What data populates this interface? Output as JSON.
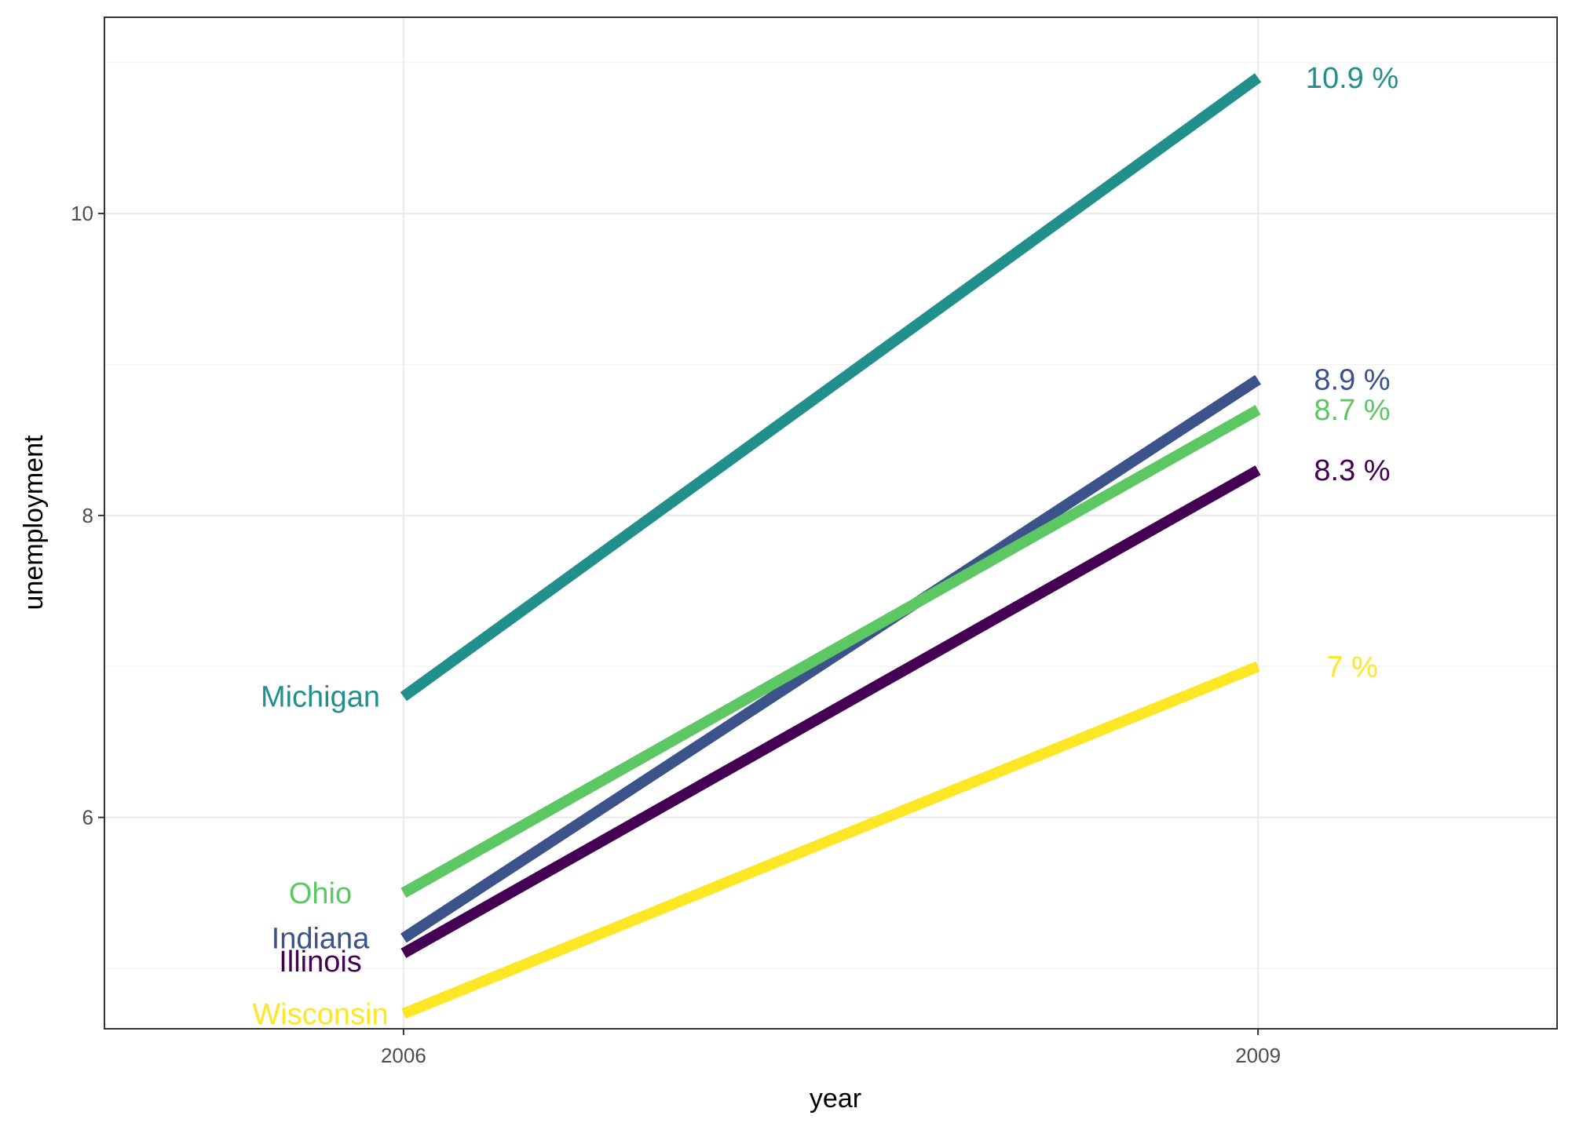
{
  "chart_data": {
    "type": "line",
    "title": "",
    "xlabel": "year",
    "ylabel": "unemployment",
    "x": [
      2006,
      2009
    ],
    "xlim": [
      2004.95,
      2010.05
    ],
    "ylim": [
      4.6,
      11.3
    ],
    "x_ticks": [
      "2006",
      "2009"
    ],
    "y_ticks": [
      "6",
      "8",
      "10"
    ],
    "y_tick_values": [
      6,
      8,
      10
    ],
    "grid": true,
    "legend": "none",
    "series": [
      {
        "name": "Michigan",
        "values": [
          6.8,
          10.9
        ],
        "color": "#21908C",
        "end_label": "10.9 %"
      },
      {
        "name": "Indiana",
        "values": [
          5.2,
          8.9
        ],
        "color": "#3B528B",
        "end_label": "8.9 %"
      },
      {
        "name": "Ohio",
        "values": [
          5.5,
          8.7
        ],
        "color": "#5DC863",
        "end_label": "8.7 %"
      },
      {
        "name": "Illinois",
        "values": [
          5.1,
          8.3
        ],
        "color": "#440154",
        "end_label": "8.3 %"
      },
      {
        "name": "Wisconsin",
        "values": [
          4.7,
          7.0
        ],
        "color": "#FDE725",
        "end_label": "7 %"
      }
    ]
  }
}
